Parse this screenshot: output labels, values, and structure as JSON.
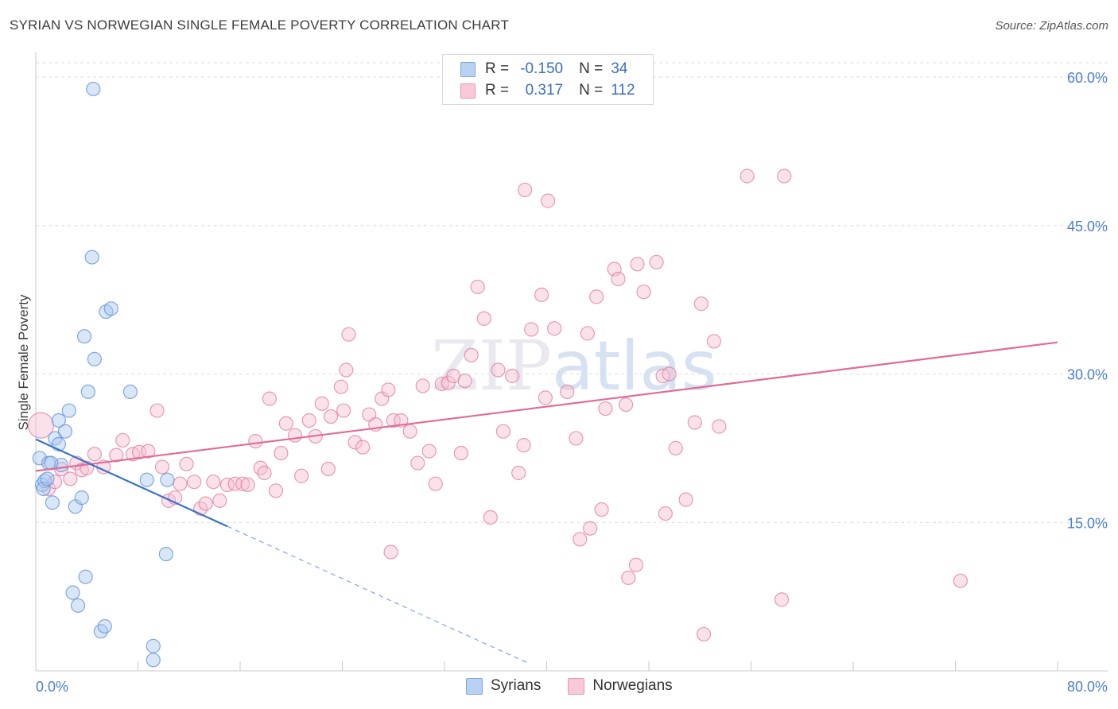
{
  "chart_data": {
    "type": "scatter",
    "title": "SYRIAN VS NORWEGIAN SINGLE FEMALE POVERTY CORRELATION CHART",
    "source": "Source: ZipAtlas.com",
    "xlabel": "",
    "ylabel": "Single Female Poverty",
    "xlim": [
      0,
      80
    ],
    "ylim": [
      0,
      62
    ],
    "x_tick_labels": [
      "0.0%",
      "80.0%"
    ],
    "y_ticks": [
      15,
      30,
      45,
      60
    ],
    "y_tick_labels": [
      "15.0%",
      "30.0%",
      "45.0%",
      "60.0%"
    ],
    "grid": true,
    "legend_position": "top-center",
    "watermark": "ZIPatlas",
    "stats": [
      {
        "r_label": "R =",
        "r_value": "-0.150",
        "n_label": "N =",
        "n_value": "34"
      },
      {
        "r_label": "R =",
        "r_value": "0.317",
        "n_label": "N =",
        "n_value": "112"
      }
    ],
    "series": [
      {
        "name": "Syrians",
        "color": "#5b8fd6",
        "fill": "#a9c8f0",
        "trend": {
          "x0": 0,
          "y0": 23.4,
          "x1": 15,
          "y1": 14.6,
          "dash_to_x": 38.5
        },
        "points": [
          [
            0.3,
            21.5
          ],
          [
            0.5,
            18.8
          ],
          [
            0.7,
            19.2
          ],
          [
            1.0,
            21.0
          ],
          [
            1.3,
            17.0
          ],
          [
            1.5,
            23.5
          ],
          [
            1.8,
            25.3
          ],
          [
            2.0,
            20.8
          ],
          [
            2.3,
            24.2
          ],
          [
            2.6,
            26.3
          ],
          [
            0.6,
            18.4
          ],
          [
            3.1,
            16.6
          ],
          [
            3.6,
            17.5
          ],
          [
            3.8,
            33.8
          ],
          [
            4.1,
            28.2
          ],
          [
            4.4,
            41.8
          ],
          [
            4.6,
            31.5
          ],
          [
            5.5,
            36.3
          ],
          [
            5.9,
            36.6
          ],
          [
            7.4,
            28.2
          ],
          [
            8.7,
            19.3
          ],
          [
            10.3,
            19.3
          ],
          [
            10.2,
            11.8
          ],
          [
            4.5,
            58.8
          ],
          [
            3.9,
            9.5
          ],
          [
            2.9,
            7.9
          ],
          [
            3.3,
            6.6
          ],
          [
            5.1,
            4.0
          ],
          [
            5.4,
            4.5
          ],
          [
            9.2,
            2.5
          ],
          [
            9.2,
            1.1
          ],
          [
            1.2,
            21.0
          ],
          [
            1.8,
            22.9
          ],
          [
            0.9,
            19.4
          ]
        ]
      },
      {
        "name": "Norwegians",
        "color": "#e07aa0",
        "fill": "#f7bfd1",
        "trend": {
          "x0": 0,
          "y0": 20.2,
          "x1": 80,
          "y1": 33.2
        },
        "points": [
          [
            0.4,
            24.8
          ],
          [
            1.0,
            18.4
          ],
          [
            1.5,
            19.1
          ],
          [
            2.0,
            20.4
          ],
          [
            2.7,
            19.4
          ],
          [
            3.2,
            21.0
          ],
          [
            3.6,
            20.3
          ],
          [
            4.0,
            20.5
          ],
          [
            4.6,
            21.9
          ],
          [
            5.3,
            20.6
          ],
          [
            6.3,
            21.8
          ],
          [
            6.8,
            23.3
          ],
          [
            7.6,
            21.9
          ],
          [
            8.1,
            22.1
          ],
          [
            8.8,
            22.2
          ],
          [
            9.5,
            26.3
          ],
          [
            9.9,
            20.6
          ],
          [
            10.4,
            17.2
          ],
          [
            10.9,
            17.5
          ],
          [
            11.3,
            18.9
          ],
          [
            11.8,
            20.9
          ],
          [
            12.4,
            19.1
          ],
          [
            12.9,
            16.4
          ],
          [
            13.3,
            16.9
          ],
          [
            13.9,
            19.1
          ],
          [
            14.4,
            17.2
          ],
          [
            15.0,
            18.8
          ],
          [
            15.6,
            18.9
          ],
          [
            16.2,
            18.9
          ],
          [
            16.6,
            18.8
          ],
          [
            17.2,
            23.2
          ],
          [
            17.6,
            20.5
          ],
          [
            17.9,
            20.0
          ],
          [
            18.3,
            27.5
          ],
          [
            18.8,
            18.2
          ],
          [
            19.2,
            22.0
          ],
          [
            19.6,
            25.0
          ],
          [
            20.3,
            23.8
          ],
          [
            20.8,
            19.7
          ],
          [
            21.4,
            25.3
          ],
          [
            21.9,
            23.7
          ],
          [
            22.4,
            27.0
          ],
          [
            22.9,
            20.4
          ],
          [
            23.1,
            25.7
          ],
          [
            23.9,
            28.7
          ],
          [
            24.3,
            30.4
          ],
          [
            24.5,
            34.0
          ],
          [
            25.0,
            23.1
          ],
          [
            25.6,
            22.6
          ],
          [
            26.1,
            25.9
          ],
          [
            26.6,
            24.9
          ],
          [
            27.1,
            27.5
          ],
          [
            27.6,
            28.4
          ],
          [
            28.0,
            25.3
          ],
          [
            28.6,
            25.3
          ],
          [
            29.3,
            24.2
          ],
          [
            29.9,
            21.0
          ],
          [
            30.3,
            28.8
          ],
          [
            30.8,
            22.2
          ],
          [
            31.3,
            18.9
          ],
          [
            31.8,
            29.0
          ],
          [
            32.3,
            29.1
          ],
          [
            32.7,
            29.8
          ],
          [
            33.3,
            22.0
          ],
          [
            33.6,
            29.3
          ],
          [
            34.1,
            31.9
          ],
          [
            34.6,
            38.8
          ],
          [
            35.1,
            35.6
          ],
          [
            35.6,
            15.5
          ],
          [
            36.2,
            30.4
          ],
          [
            36.6,
            24.2
          ],
          [
            37.3,
            29.8
          ],
          [
            37.8,
            20.0
          ],
          [
            38.2,
            22.8
          ],
          [
            38.8,
            34.5
          ],
          [
            39.6,
            38.0
          ],
          [
            39.9,
            27.6
          ],
          [
            40.6,
            34.6
          ],
          [
            41.6,
            28.2
          ],
          [
            42.3,
            23.5
          ],
          [
            42.6,
            13.3
          ],
          [
            43.2,
            34.1
          ],
          [
            43.9,
            37.8
          ],
          [
            44.6,
            26.5
          ],
          [
            45.3,
            40.6
          ],
          [
            45.6,
            39.6
          ],
          [
            46.2,
            26.9
          ],
          [
            47.1,
            41.1
          ],
          [
            47.6,
            38.3
          ],
          [
            48.6,
            41.3
          ],
          [
            49.1,
            29.8
          ],
          [
            49.6,
            30.0
          ],
          [
            50.1,
            22.5
          ],
          [
            50.9,
            17.3
          ],
          [
            51.6,
            25.1
          ],
          [
            52.1,
            37.1
          ],
          [
            53.1,
            33.3
          ],
          [
            53.5,
            24.7
          ],
          [
            40.1,
            47.5
          ],
          [
            38.3,
            48.6
          ],
          [
            55.7,
            50.0
          ],
          [
            58.6,
            50.0
          ],
          [
            27.8,
            12.0
          ],
          [
            43.4,
            14.4
          ],
          [
            46.4,
            9.4
          ],
          [
            47.0,
            10.7
          ],
          [
            49.3,
            15.9
          ],
          [
            52.3,
            3.7
          ],
          [
            58.4,
            7.2
          ],
          [
            72.4,
            9.1
          ],
          [
            44.3,
            16.3
          ],
          [
            24.1,
            26.3
          ]
        ]
      }
    ]
  }
}
